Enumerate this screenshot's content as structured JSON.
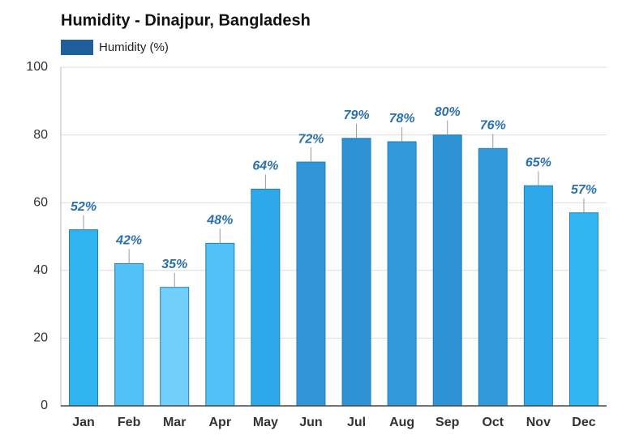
{
  "chart_data": {
    "type": "bar",
    "title": "Humidity - Dinajpur, Bangladesh",
    "categories": [
      "Jan",
      "Feb",
      "Mar",
      "Apr",
      "May",
      "Jun",
      "Jul",
      "Aug",
      "Sep",
      "Oct",
      "Nov",
      "Dec"
    ],
    "series": [
      {
        "name": "Humidity (%)",
        "color": "#1f5f9e",
        "values": [
          52,
          42,
          35,
          48,
          64,
          72,
          79,
          78,
          80,
          76,
          65,
          57
        ],
        "value_labels": [
          "52%",
          "42%",
          "35%",
          "48%",
          "64%",
          "72%",
          "79%",
          "78%",
          "80%",
          "76%",
          "65%",
          "57%"
        ],
        "bar_colors": [
          "#2fb4f0",
          "#52c1f6",
          "#72cefa",
          "#52c1f6",
          "#2ea8e9",
          "#3196d7",
          "#2f92d4",
          "#3299da",
          "#2f92d4",
          "#3199d9",
          "#2ea8e9",
          "#30b7f2"
        ]
      }
    ],
    "ylim": [
      0,
      100
    ],
    "yticks": [
      0,
      20,
      40,
      60,
      80,
      100
    ],
    "grid": true
  }
}
